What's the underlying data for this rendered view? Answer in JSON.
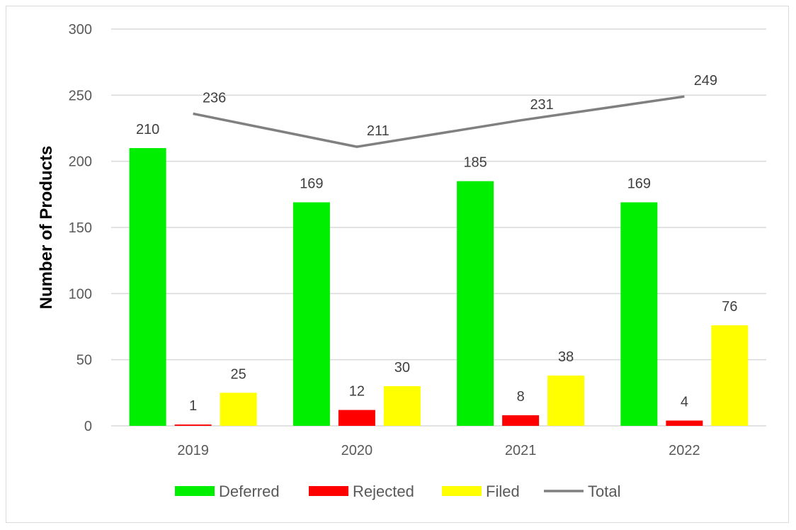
{
  "chart_data": {
    "type": "bar",
    "title": "",
    "xlabel": "",
    "ylabel": "Number of Products",
    "ylim": [
      0,
      300
    ],
    "yticks": [
      0,
      50,
      100,
      150,
      200,
      250,
      300
    ],
    "categories": [
      "2019",
      "2020",
      "2021",
      "2022"
    ],
    "series": [
      {
        "name": "Deferred",
        "type": "bar",
        "color": "#00ee00",
        "values": [
          210,
          169,
          185,
          169
        ]
      },
      {
        "name": "Rejected",
        "type": "bar",
        "color": "#ff0000",
        "values": [
          1,
          12,
          8,
          4
        ]
      },
      {
        "name": "Filed",
        "type": "bar",
        "color": "#ffff00",
        "values": [
          25,
          30,
          38,
          76
        ]
      },
      {
        "name": "Total",
        "type": "line",
        "color": "#808080",
        "values": [
          236,
          211,
          231,
          249
        ]
      }
    ],
    "grid": true,
    "legend_position": "bottom"
  }
}
